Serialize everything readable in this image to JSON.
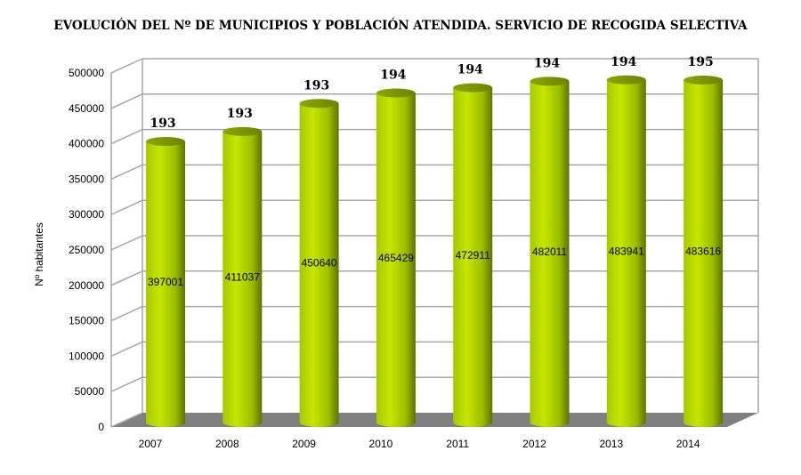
{
  "chart_data": {
    "type": "bar",
    "title": "EVOLUCIÓN DEL Nº DE MUNICIPIOS Y POBLACIÓN ATENDIDA. SERVICIO DE RECOGIDA SELECTIVA",
    "xlabel": "",
    "ylabel": "Nº habitantes",
    "ylim": [
      0,
      500000
    ],
    "yticks": [
      0,
      50000,
      100000,
      150000,
      200000,
      250000,
      300000,
      350000,
      400000,
      450000,
      500000
    ],
    "categories": [
      "2007",
      "2008",
      "2009",
      "2010",
      "2011",
      "2012",
      "2013",
      "2014"
    ],
    "series": [
      {
        "name": "Población atendida",
        "values": [
          397001,
          411037,
          450640,
          465429,
          472911,
          482011,
          483941,
          483616
        ]
      },
      {
        "name": "Nº de municipios",
        "values": [
          193,
          193,
          193,
          194,
          194,
          194,
          194,
          195
        ]
      }
    ],
    "grid": true,
    "bar_color": "#b5d600",
    "floor_color": "#808080"
  }
}
